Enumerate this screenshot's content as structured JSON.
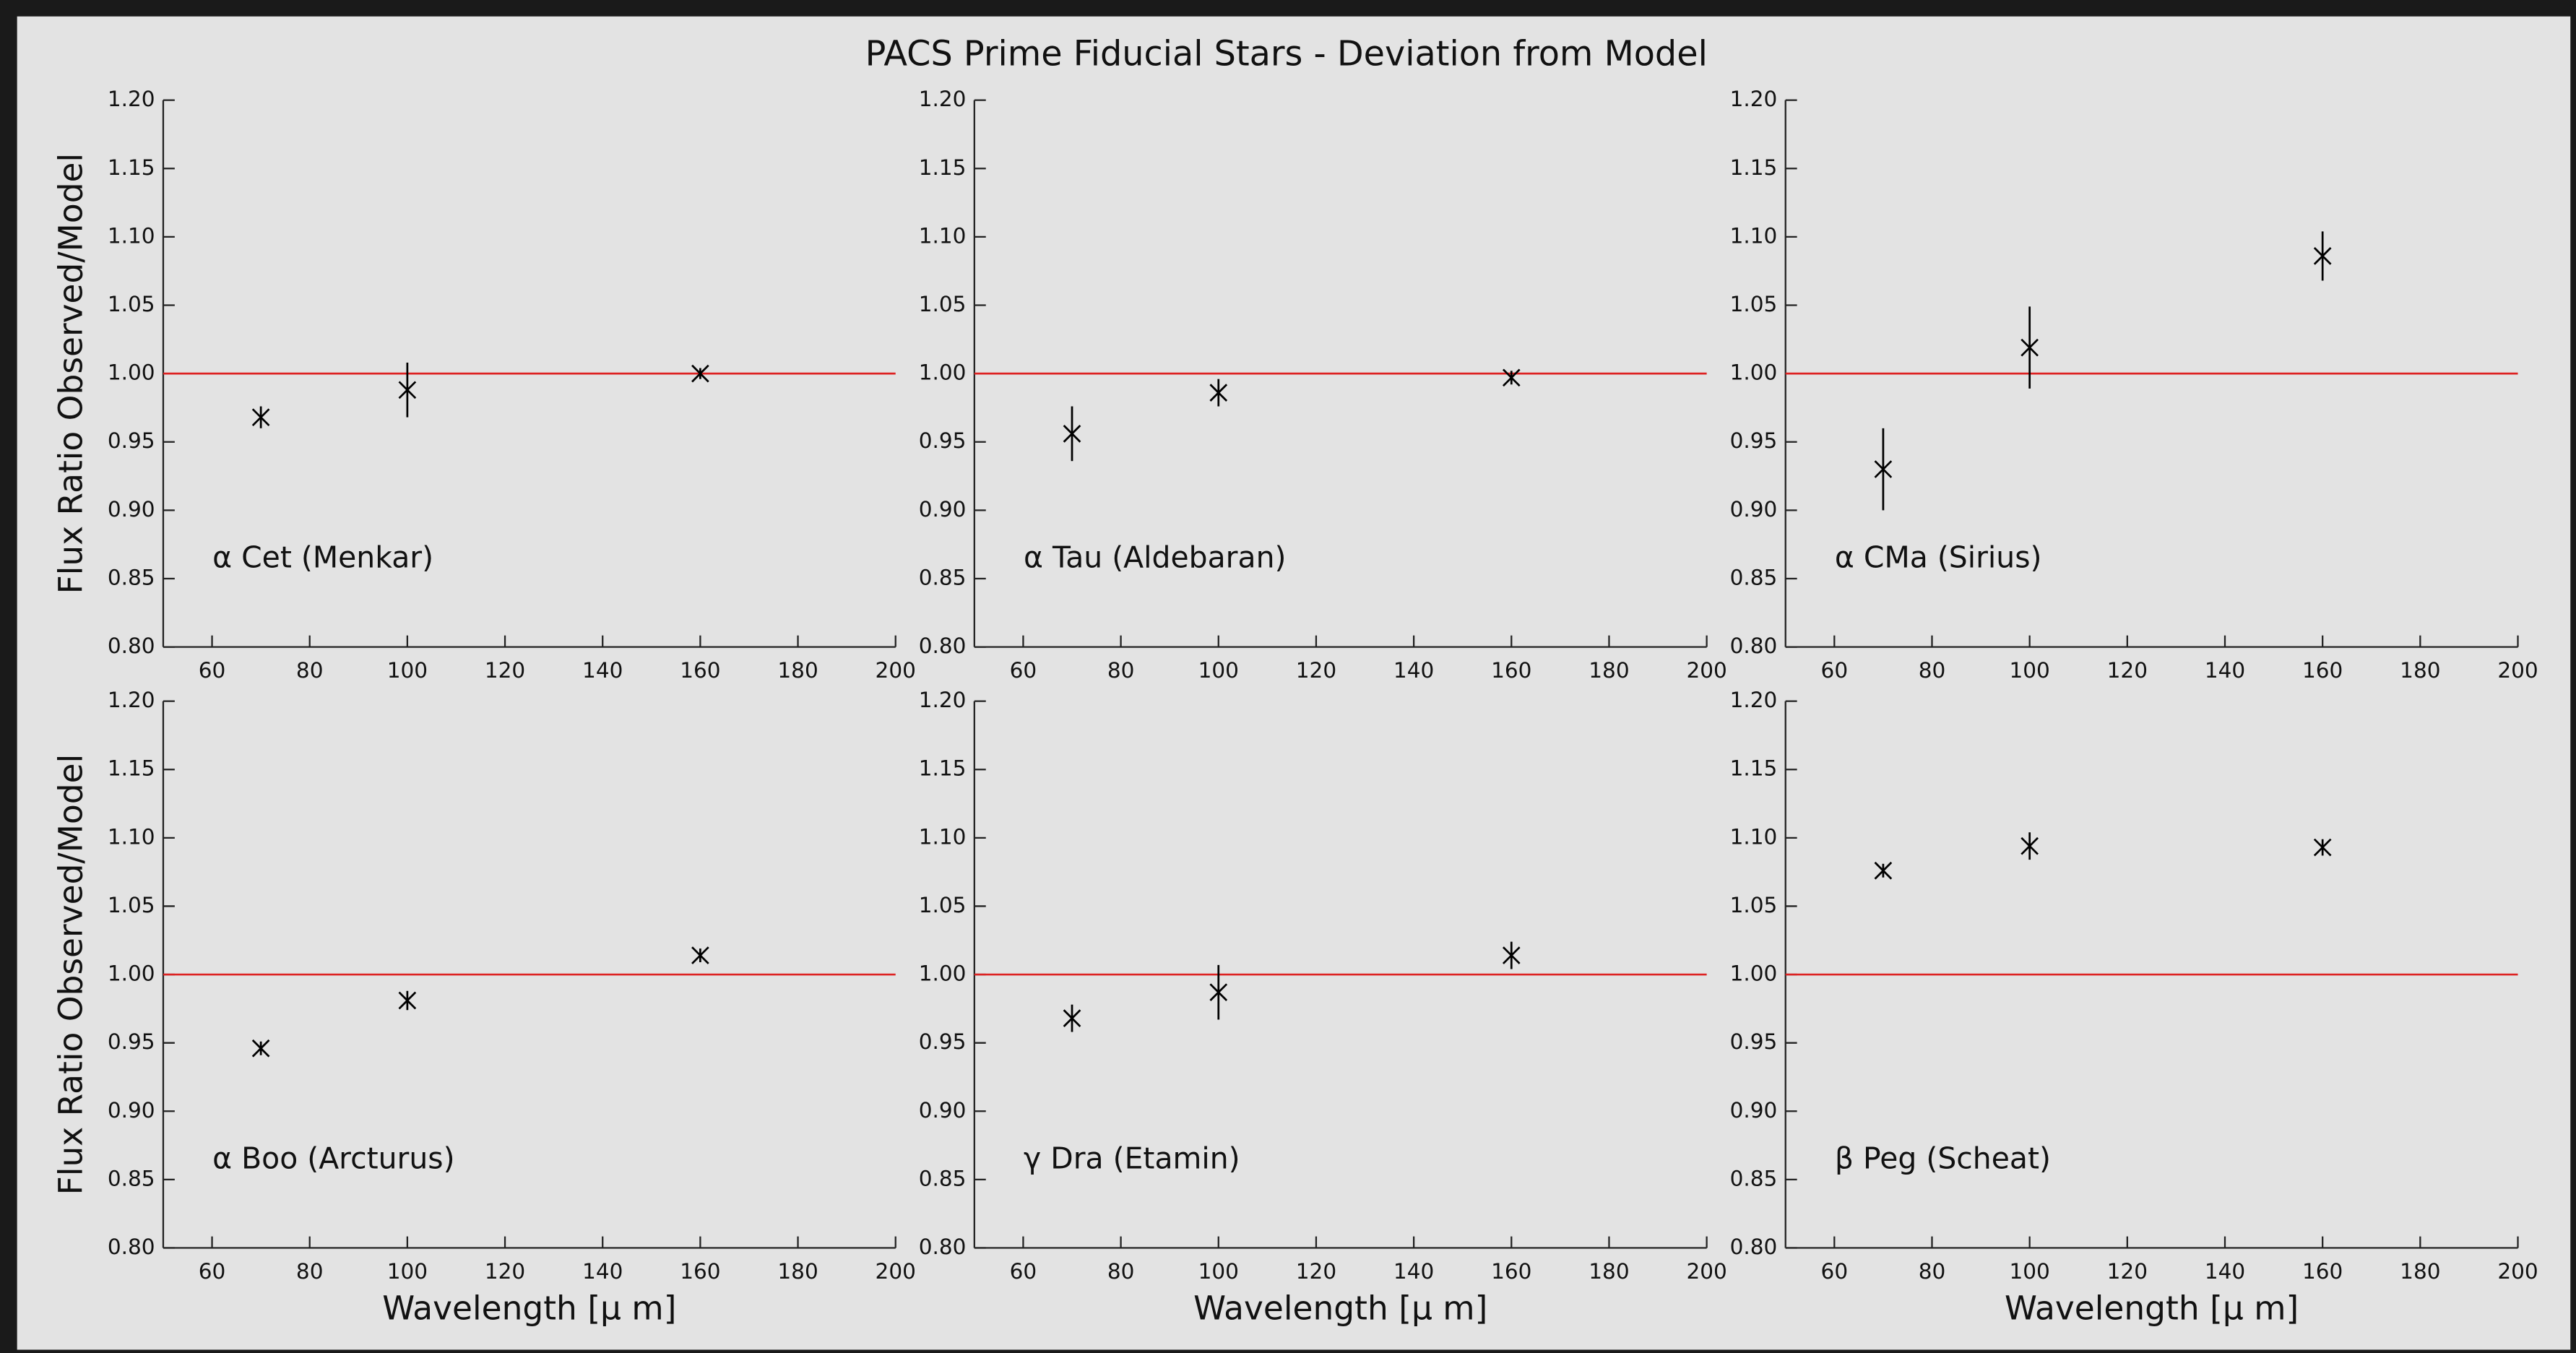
{
  "title": "PACS Prime Fiducial Stars - Deviation from Model",
  "chart_data": [
    {
      "type": "scatter",
      "annotation": "α Cet (Menkar)",
      "ylabel": "Flux Ratio Observed/Model",
      "x": [
        70,
        100,
        160
      ],
      "values": [
        0.968,
        0.988,
        1.0
      ],
      "errors": [
        0.008,
        0.02,
        0.004
      ],
      "color": "#000000",
      "hline": 1.0,
      "hline_color": "#dd2222",
      "xlim": [
        50,
        200
      ],
      "xticks": [
        60,
        80,
        100,
        120,
        140,
        160,
        180,
        200
      ],
      "ylim": [
        0.8,
        1.2
      ],
      "yticks": [
        {
          "value": 0.8,
          "label": "0.80"
        },
        0.85,
        {
          "value": 0.9,
          "label": "0.90"
        },
        0.95,
        {
          "value": 1.0,
          "label": "1.00"
        },
        1.05,
        {
          "value": 1.1,
          "label": "1.10"
        },
        1.15,
        {
          "value": 1.2,
          "label": "1.20"
        }
      ]
    },
    {
      "type": "scatter",
      "annotation": "α Tau (Aldebaran)",
      "x": [
        70,
        100,
        160
      ],
      "values": [
        0.956,
        0.986,
        0.997
      ],
      "errors": [
        0.02,
        0.01,
        0.005
      ],
      "color": "#000000",
      "hline": 1.0,
      "hline_color": "#dd2222",
      "xlim": [
        50,
        200
      ],
      "xticks": [
        60,
        80,
        100,
        120,
        140,
        160,
        180,
        200
      ],
      "ylim": [
        0.8,
        1.2
      ],
      "yticks": [
        {
          "value": 0.8,
          "label": "0.80"
        },
        0.85,
        {
          "value": 0.9,
          "label": "0.90"
        },
        0.95,
        {
          "value": 1.0,
          "label": "1.00"
        },
        1.05,
        {
          "value": 1.1,
          "label": "1.10"
        },
        1.15,
        {
          "value": 1.2,
          "label": "1.20"
        }
      ]
    },
    {
      "type": "scatter",
      "annotation": "α CMa (Sirius)",
      "x": [
        70,
        100,
        160
      ],
      "values": [
        0.93,
        1.019,
        1.086
      ],
      "errors": [
        0.03,
        0.03,
        0.018
      ],
      "color": "#000000",
      "hline": 1.0,
      "hline_color": "#dd2222",
      "xlim": [
        50,
        200
      ],
      "xticks": [
        60,
        80,
        100,
        120,
        140,
        160,
        180,
        200
      ],
      "ylim": [
        0.8,
        1.2
      ],
      "yticks": [
        {
          "value": 0.8,
          "label": "0.80"
        },
        0.85,
        {
          "value": 0.9,
          "label": "0.90"
        },
        0.95,
        {
          "value": 1.0,
          "label": "1.00"
        },
        1.05,
        {
          "value": 1.1,
          "label": "1.10"
        },
        1.15,
        {
          "value": 1.2,
          "label": "1.20"
        }
      ]
    },
    {
      "type": "scatter",
      "annotation": "α Boo (Arcturus)",
      "ylabel": "Flux Ratio Observed/Model",
      "xlabel": "Wavelength [μ m]",
      "x": [
        70,
        100,
        160
      ],
      "values": [
        0.946,
        0.981,
        1.014
      ],
      "errors": [
        0.005,
        0.007,
        0.005
      ],
      "color": "#000000",
      "hline": 1.0,
      "hline_color": "#dd2222",
      "xlim": [
        50,
        200
      ],
      "xticks": [
        60,
        80,
        100,
        120,
        140,
        160,
        180,
        200
      ],
      "ylim": [
        0.8,
        1.2
      ],
      "yticks": [
        {
          "value": 0.8,
          "label": "0.80"
        },
        0.85,
        {
          "value": 0.9,
          "label": "0.90"
        },
        0.95,
        {
          "value": 1.0,
          "label": "1.00"
        },
        1.05,
        {
          "value": 1.1,
          "label": "1.10"
        },
        1.15,
        {
          "value": 1.2,
          "label": "1.20"
        }
      ]
    },
    {
      "type": "scatter",
      "annotation": "γ Dra (Etamin)",
      "xlabel": "Wavelength [μ m]",
      "x": [
        70,
        100,
        160
      ],
      "values": [
        0.968,
        0.987,
        1.014
      ],
      "errors": [
        0.01,
        0.02,
        0.01
      ],
      "color": "#000000",
      "hline": 1.0,
      "hline_color": "#dd2222",
      "xlim": [
        50,
        200
      ],
      "xticks": [
        60,
        80,
        100,
        120,
        140,
        160,
        180,
        200
      ],
      "ylim": [
        0.8,
        1.2
      ],
      "yticks": [
        {
          "value": 0.8,
          "label": "0.80"
        },
        0.85,
        {
          "value": 0.9,
          "label": "0.90"
        },
        0.95,
        {
          "value": 1.0,
          "label": "1.00"
        },
        1.05,
        {
          "value": 1.1,
          "label": "1.10"
        },
        1.15,
        {
          "value": 1.2,
          "label": "1.20"
        }
      ]
    },
    {
      "type": "scatter",
      "annotation": "β Peg (Scheat)",
      "xlabel": "Wavelength [μ m]",
      "x": [
        70,
        100,
        160
      ],
      "values": [
        1.076,
        1.094,
        1.093
      ],
      "errors": [
        0.005,
        0.01,
        0.006
      ],
      "color": "#000000",
      "hline": 1.0,
      "hline_color": "#dd2222",
      "xlim": [
        50,
        200
      ],
      "xticks": [
        60,
        80,
        100,
        120,
        140,
        160,
        180,
        200
      ],
      "ylim": [
        0.8,
        1.2
      ],
      "yticks": [
        {
          "value": 0.8,
          "label": "0.80"
        },
        0.85,
        {
          "value": 0.9,
          "label": "0.90"
        },
        0.95,
        {
          "value": 1.0,
          "label": "1.00"
        },
        1.05,
        {
          "value": 1.1,
          "label": "1.10"
        },
        1.15,
        {
          "value": 1.2,
          "label": "1.20"
        }
      ]
    }
  ]
}
